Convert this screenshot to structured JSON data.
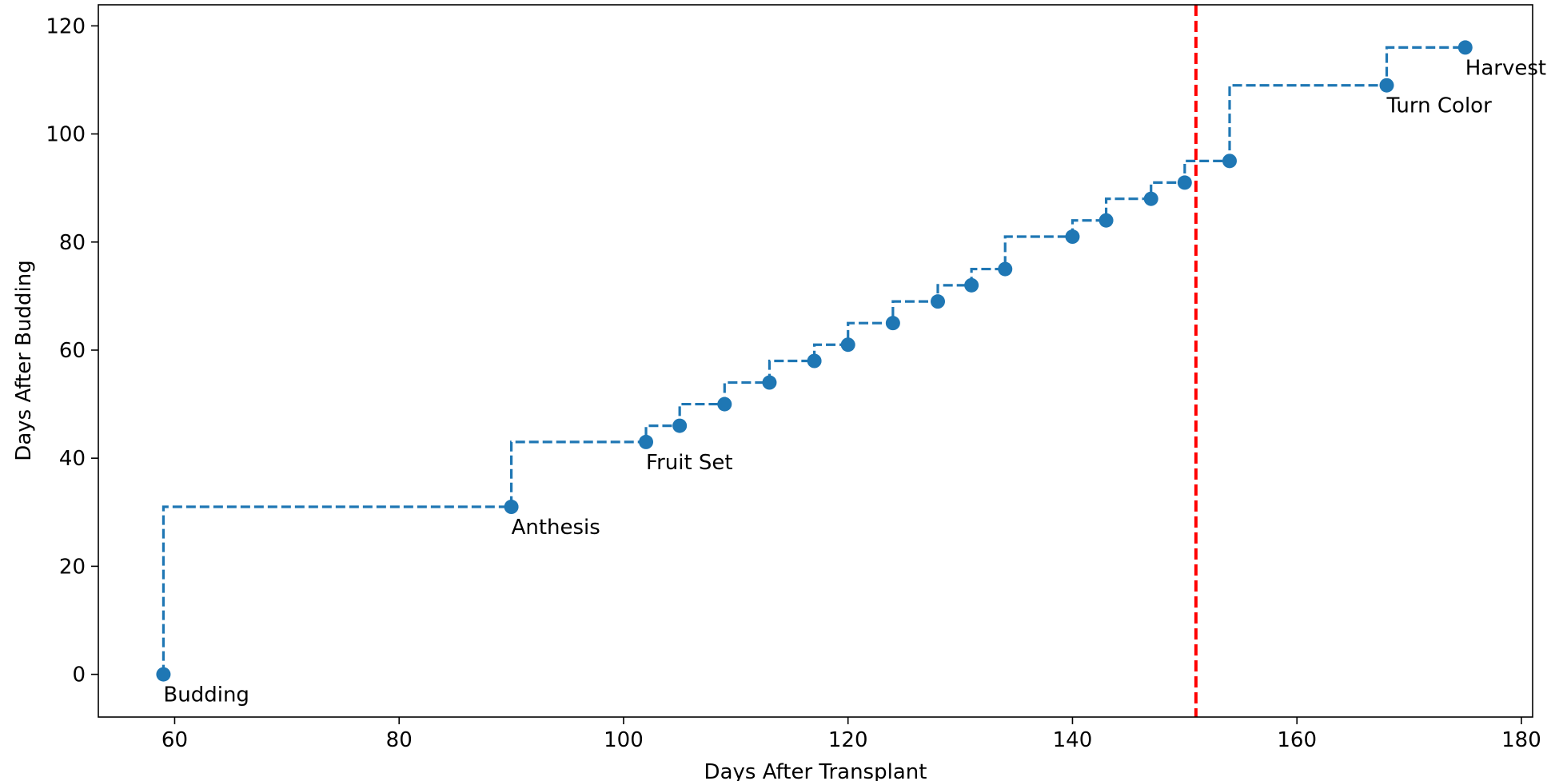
{
  "chart_data": {
    "type": "line",
    "step": "post",
    "title": "",
    "xlabel": "Days After Transplant",
    "ylabel": "Days After Budding",
    "xlim": [
      53.2,
      181.0
    ],
    "ylim": [
      -7.9,
      123.9
    ],
    "xticks": [
      60,
      80,
      100,
      120,
      140,
      160,
      180
    ],
    "yticks": [
      0,
      20,
      40,
      60,
      80,
      100,
      120
    ],
    "grid": false,
    "series": [
      {
        "name": "",
        "color": "#1f77b4",
        "line_style": "dashed",
        "marker": "circle",
        "x": [
          59,
          90,
          102,
          105,
          109,
          113,
          117,
          120,
          124,
          128,
          131,
          134,
          140,
          143,
          147,
          150,
          154,
          168,
          175
        ],
        "y": [
          0,
          31,
          43,
          46,
          50,
          54,
          58,
          61,
          65,
          69,
          72,
          75,
          81,
          84,
          88,
          91,
          95,
          109,
          116
        ]
      }
    ],
    "annotations": [
      {
        "text": "Budding",
        "x": 59,
        "y": 0
      },
      {
        "text": "Anthesis",
        "x": 90,
        "y": 31
      },
      {
        "text": "Fruit Set",
        "x": 102,
        "y": 43
      },
      {
        "text": "Turn Color",
        "x": 168,
        "y": 109
      },
      {
        "text": "Harvest",
        "x": 175,
        "y": 116
      }
    ],
    "reference_lines": [
      {
        "orientation": "vertical",
        "x": 151,
        "color": "#ff0000",
        "line_style": "dashed"
      }
    ]
  }
}
